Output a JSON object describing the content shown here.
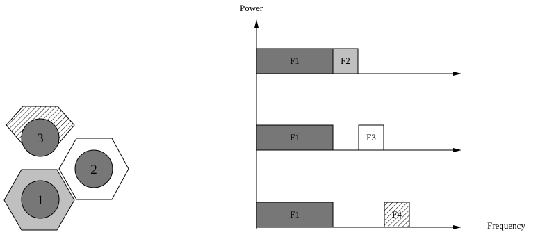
{
  "axis": {
    "y_title": "Power",
    "x_title": "Frequency"
  },
  "cells": [
    {
      "label": "3",
      "fill_pattern": "hatch"
    },
    {
      "label": "2",
      "fill_pattern": "white"
    },
    {
      "label": "1",
      "fill_pattern": "light-gray"
    }
  ],
  "spectrum_rows": [
    {
      "bands": [
        {
          "label": "F1",
          "fill": "#777777"
        },
        {
          "label": "F2",
          "fill": "#c0c0c0"
        }
      ]
    },
    {
      "bands": [
        {
          "label": "F1",
          "fill": "#777777"
        },
        {
          "label": "F3",
          "fill": "#ffffff"
        }
      ]
    },
    {
      "bands": [
        {
          "label": "F1",
          "fill": "#777777"
        },
        {
          "label": "F4",
          "fill": "hatch"
        }
      ]
    }
  ],
  "colors": {
    "dark_gray": "#777777",
    "light_gray": "#c0c0c0",
    "line": "#000000"
  }
}
